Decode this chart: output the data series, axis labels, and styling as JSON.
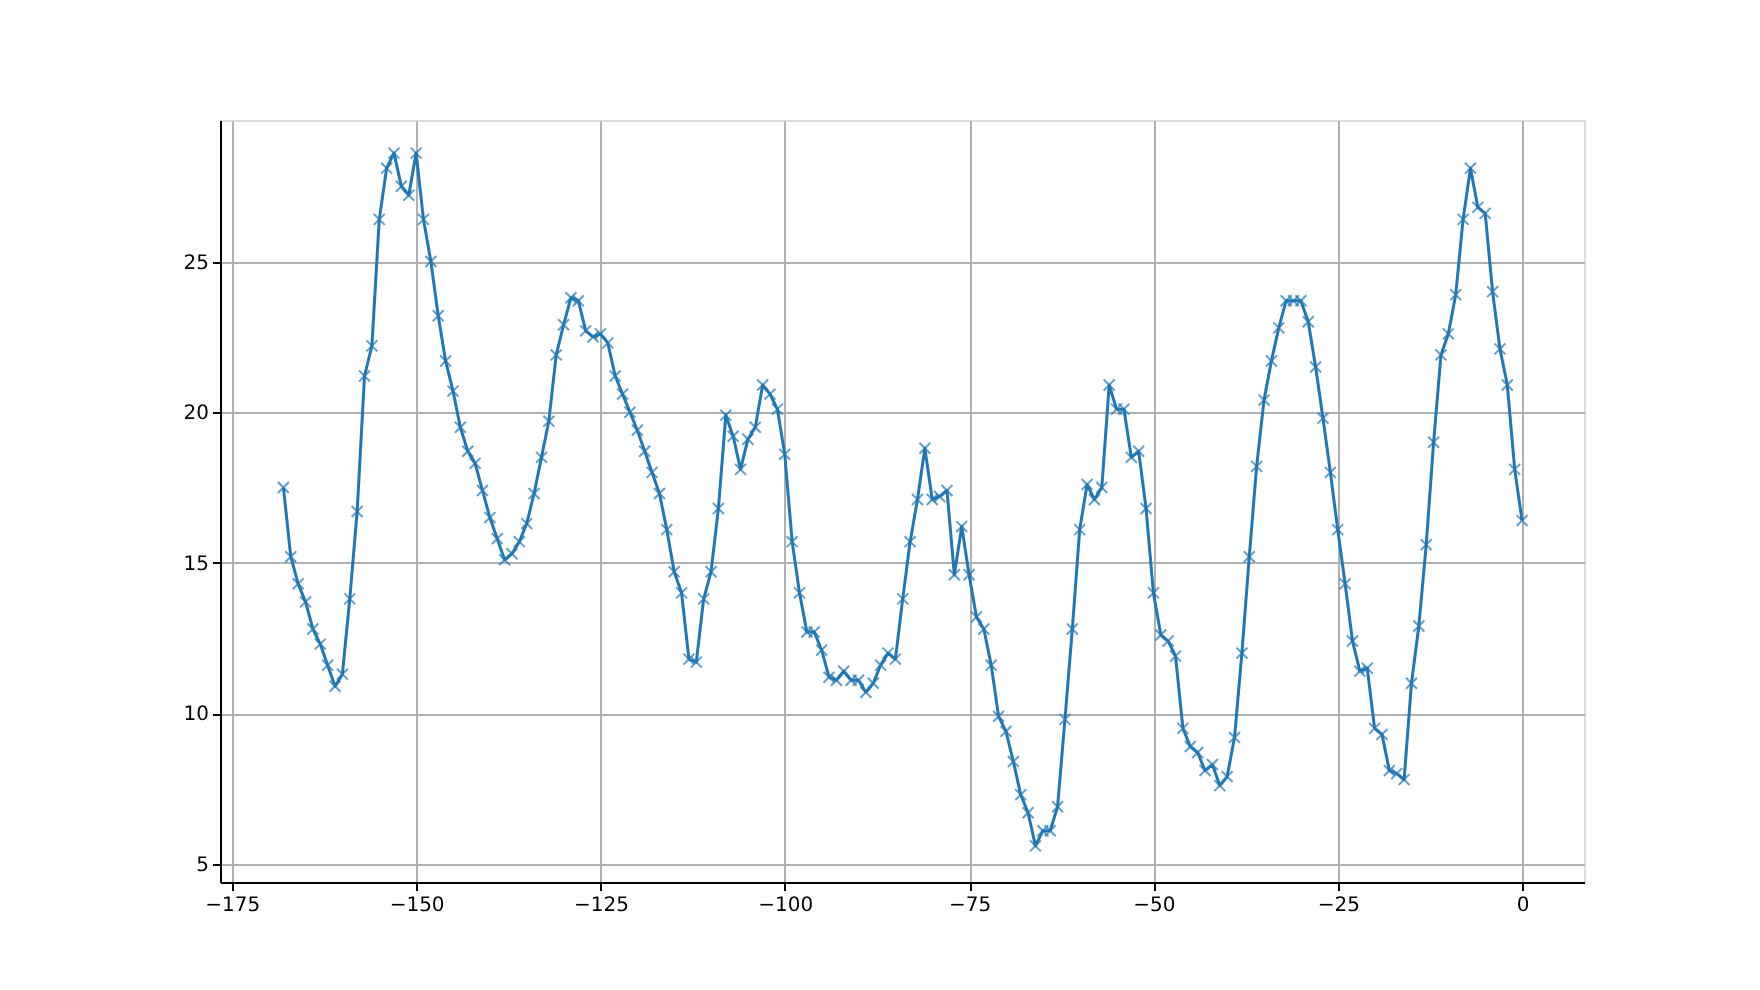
{
  "chart_data": {
    "type": "line",
    "x": [
      -168,
      -167,
      -166,
      -165,
      -164,
      -163,
      -162,
      -161,
      -160,
      -159,
      -158,
      -157,
      -156,
      -155,
      -154,
      -153,
      -152,
      -151,
      -150,
      -149,
      -148,
      -147,
      -146,
      -145,
      -144,
      -143,
      -142,
      -141,
      -140,
      -139,
      -138,
      -137,
      -136,
      -135,
      -134,
      -133,
      -132,
      -131,
      -130,
      -129,
      -128,
      -127,
      -126,
      -125,
      -124,
      -123,
      -122,
      -121,
      -120,
      -119,
      -118,
      -117,
      -116,
      -115,
      -114,
      -113,
      -112,
      -111,
      -110,
      -109,
      -108,
      -107,
      -106,
      -105,
      -104,
      -103,
      -102,
      -101,
      -100,
      -99,
      -98,
      -97,
      -96,
      -95,
      -94,
      -93,
      -92,
      -91,
      -90,
      -89,
      -88,
      -87,
      -86,
      -85,
      -84,
      -83,
      -82,
      -81,
      -80,
      -79,
      -78,
      -77,
      -76,
      -75,
      -74,
      -73,
      -72,
      -71,
      -70,
      -69,
      -68,
      -67,
      -66,
      -65,
      -64,
      -63,
      -62,
      -61,
      -60,
      -59,
      -58,
      -57,
      -56,
      -55,
      -54,
      -53,
      -52,
      -51,
      -50,
      -49,
      -48,
      -47,
      -46,
      -45,
      -44,
      -43,
      -42,
      -41,
      -40,
      -39,
      -38,
      -37,
      -36,
      -35,
      -34,
      -33,
      -32,
      -31,
      -30,
      -29,
      -28,
      -27,
      -26,
      -25,
      -24,
      -23,
      -22,
      -21,
      -20,
      -19,
      -18,
      -17,
      -16,
      -15,
      -14,
      -13,
      -12,
      -11,
      -10,
      -9,
      -8,
      -7,
      -6,
      -5,
      -4,
      -3,
      -2,
      -1,
      0
    ],
    "series": [
      {
        "color": "#1f77b4",
        "values": [
          17.5,
          15.2,
          14.3,
          13.7,
          12.8,
          12.3,
          11.6,
          10.9,
          11.3,
          13.8,
          16.7,
          21.2,
          22.2,
          26.4,
          28.1,
          28.6,
          27.5,
          27.2,
          28.6,
          26.4,
          25.0,
          23.2,
          21.7,
          20.7,
          19.5,
          18.7,
          18.3,
          17.4,
          16.5,
          15.8,
          15.1,
          15.3,
          15.7,
          16.3,
          17.3,
          18.5,
          19.7,
          21.9,
          22.9,
          23.8,
          23.7,
          22.7,
          22.5,
          22.6,
          22.3,
          21.2,
          20.6,
          20.0,
          19.4,
          18.7,
          18.0,
          17.3,
          16.1,
          14.7,
          14.0,
          11.8,
          11.7,
          13.8,
          14.7,
          16.8,
          19.9,
          19.2,
          18.1,
          19.1,
          19.5,
          20.9,
          20.6,
          20.1,
          18.6,
          15.7,
          14.0,
          12.7,
          12.7,
          12.1,
          11.2,
          11.1,
          11.4,
          11.1,
          11.1,
          10.7,
          11.0,
          11.6,
          12.0,
          11.8,
          13.8,
          15.7,
          17.1,
          18.8,
          17.1,
          17.2,
          17.4,
          14.6,
          16.2,
          14.6,
          13.2,
          12.8,
          11.6,
          9.9,
          9.4,
          8.4,
          7.3,
          6.7,
          5.6,
          6.1,
          6.1,
          6.9,
          9.8,
          12.8,
          16.1,
          17.6,
          17.1,
          17.5,
          20.9,
          20.1,
          20.1,
          18.5,
          18.7,
          16.8,
          14.0,
          12.6,
          12.4,
          11.9,
          9.5,
          8.9,
          8.7,
          8.1,
          8.3,
          7.6,
          7.9,
          9.2,
          12.0,
          15.2,
          18.2,
          20.4,
          21.7,
          22.8,
          23.7,
          23.7,
          23.7,
          23.0,
          21.5,
          19.8,
          18.0,
          16.1,
          14.3,
          12.4,
          11.4,
          11.5,
          9.5,
          9.3,
          8.1,
          8.0,
          7.8,
          11.0,
          12.9,
          15.6,
          19.0,
          21.9,
          22.6,
          23.9,
          26.4,
          28.1,
          26.8,
          26.6,
          24.0,
          22.1,
          20.9,
          18.1,
          16.4
        ]
      }
    ],
    "xlim": [
      -176.6,
      8.4
    ],
    "ylim": [
      4.4,
      29.7
    ],
    "xticks": [
      -175,
      -150,
      -125,
      -100,
      -75,
      -50,
      -25,
      0
    ],
    "yticks": [
      5,
      10,
      15,
      20,
      25
    ],
    "grid": true,
    "marker": "cross",
    "line_style": "solid"
  }
}
